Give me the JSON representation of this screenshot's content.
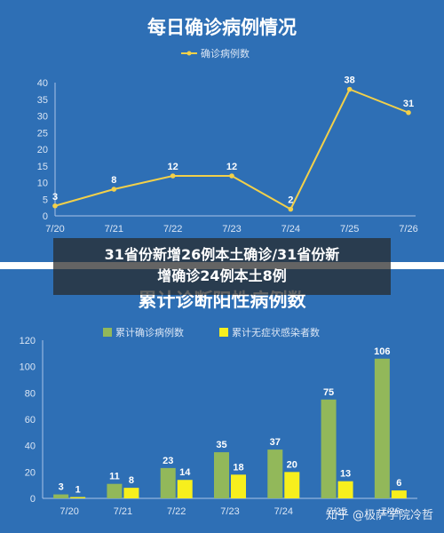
{
  "chart_data": [
    {
      "type": "line",
      "title": "每日确诊病例情况",
      "categories": [
        "7/20",
        "7/21",
        "7/22",
        "7/23",
        "7/24",
        "7/25",
        "7/26"
      ],
      "series": [
        {
          "name": "确诊病例数",
          "values": [
            3,
            8,
            12,
            12,
            2,
            38,
            31
          ],
          "color": "#f2d04a"
        }
      ],
      "yticks": [
        "0",
        "5",
        "10",
        "15",
        "20",
        "25",
        "30",
        "35",
        "40"
      ],
      "ylim": [
        0,
        40
      ],
      "legend": "top-center",
      "grid": false
    },
    {
      "type": "bar",
      "title": "累计诊断阳性病例数",
      "categories": [
        "7/20",
        "7/21",
        "7/22",
        "7/23",
        "7/24",
        "7/25",
        "7/26"
      ],
      "series": [
        {
          "name": "累计确诊病例数",
          "values": [
            3,
            11,
            23,
            35,
            37,
            75,
            106
          ],
          "color": "#92b85a"
        },
        {
          "name": "累计无症状感染者数",
          "values": [
            1,
            8,
            14,
            18,
            20,
            13,
            6
          ],
          "color": "#f7ef1d"
        }
      ],
      "yticks": [
        "0",
        "20",
        "40",
        "60",
        "80",
        "100",
        "120"
      ],
      "ylim": [
        0,
        120
      ],
      "legend": "top-center",
      "grid": false
    }
  ],
  "caption": {
    "line1": "31省份新增26例本土确诊/31省份新",
    "line2": "增确诊24例本土8例"
  },
  "watermark": "知乎 @极萨学院冷哲"
}
